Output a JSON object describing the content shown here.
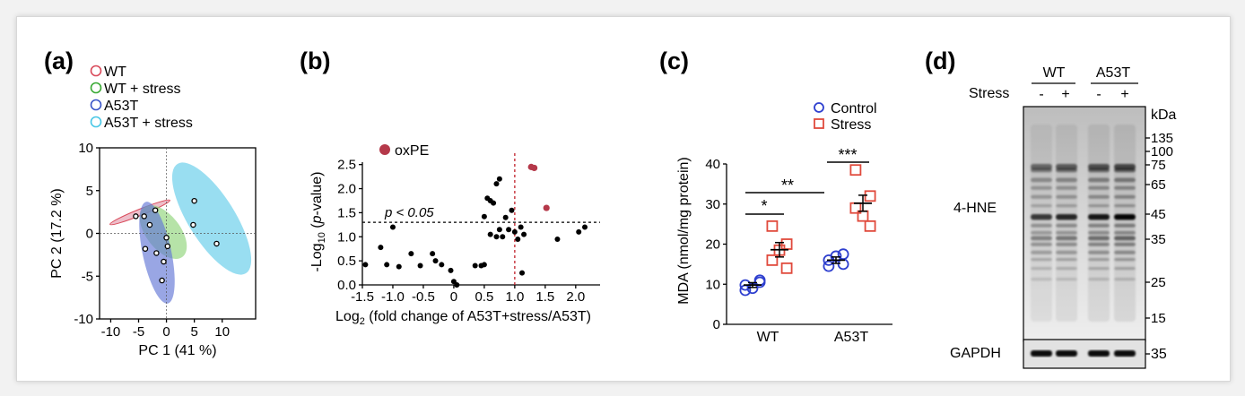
{
  "panels": {
    "a": {
      "label": "(a)",
      "legend": [
        {
          "name": "WT",
          "color": "#d94a5a"
        },
        {
          "name": "WT + stress",
          "color": "#3aaa35"
        },
        {
          "name": "A53T",
          "color": "#3a55c8"
        },
        {
          "name": "A53T + stress",
          "color": "#49c7e6"
        }
      ]
    },
    "b": {
      "label": "(b)",
      "legend_label": "oxPE",
      "legend_color": "#b5394a",
      "threshold_label": "p < 0.05"
    },
    "c": {
      "label": "(c)",
      "legend": [
        {
          "name": "Control",
          "color": "#2e3fcf"
        },
        {
          "name": "Stress",
          "color": "#e04a3c"
        }
      ],
      "significance": {
        "wt": "*",
        "between": "**",
        "a53t": "***"
      }
    },
    "d": {
      "label": "(d)",
      "groups": [
        "WT",
        "A53T"
      ],
      "row_label": "Stress",
      "lanes": [
        "-",
        "+",
        "-",
        "+"
      ],
      "unit": "kDa",
      "markers": [
        "135",
        "100",
        "75",
        "65",
        "45",
        "35",
        "25",
        "15"
      ],
      "blot_label": "4-HNE",
      "loading_label": "GAPDH",
      "loading_marker": "35"
    }
  },
  "chart_data": [
    {
      "panel": "a",
      "type": "scatter",
      "xlabel": "PC 1 (41 %)",
      "ylabel": "PC 2 (17.2 %)",
      "xlim": [
        -12,
        16
      ],
      "ylim": [
        -10,
        10
      ],
      "xticks": [
        -10,
        -5,
        0,
        5,
        10
      ],
      "yticks": [
        -10,
        -5,
        0,
        5,
        10
      ],
      "points": [
        {
          "x": -5.5,
          "y": 2.0
        },
        {
          "x": -4.0,
          "y": 2.0
        },
        {
          "x": -2.0,
          "y": 2.7
        },
        {
          "x": -3.0,
          "y": 1.0
        },
        {
          "x": 0.0,
          "y": -0.5
        },
        {
          "x": 0.2,
          "y": -1.5
        },
        {
          "x": -3.8,
          "y": -1.8
        },
        {
          "x": -1.8,
          "y": -2.3
        },
        {
          "x": -0.5,
          "y": -3.3
        },
        {
          "x": -0.8,
          "y": -5.5
        },
        {
          "x": 5.0,
          "y": 3.8
        },
        {
          "x": 4.8,
          "y": 1.0
        },
        {
          "x": 9.0,
          "y": -1.2
        }
      ]
    },
    {
      "panel": "b",
      "type": "scatter",
      "xlabel": "Log2 (fold change of A53T+stress/A53T)",
      "ylabel": "-Log10 (p-value)",
      "xlim": [
        -1.5,
        2.4
      ],
      "ylim": [
        0,
        2.55
      ],
      "xticks": [
        -1.5,
        -1.0,
        -0.5,
        0,
        0.5,
        1.0,
        1.5,
        2.0
      ],
      "xticklabels": [
        "-1.5",
        "-1.0",
        "-0.5",
        "0",
        "0.5",
        "1.0",
        "1.5",
        "2.0"
      ],
      "yticks": [
        0.0,
        0.5,
        1.0,
        1.5,
        2.0,
        2.5
      ],
      "yticklabels": [
        "0.0",
        "0.5",
        "1.0",
        "1.5",
        "2.0",
        "2.5"
      ],
      "threshold_y": 1.3,
      "vline_x": 1.0,
      "points": [
        {
          "x": -1.45,
          "y": 0.42
        },
        {
          "x": -1.2,
          "y": 0.78
        },
        {
          "x": -1.1,
          "y": 0.42
        },
        {
          "x": -1.0,
          "y": 1.2
        },
        {
          "x": -0.9,
          "y": 0.38
        },
        {
          "x": -0.7,
          "y": 0.65
        },
        {
          "x": -0.55,
          "y": 0.4
        },
        {
          "x": -0.35,
          "y": 0.65
        },
        {
          "x": -0.3,
          "y": 0.5
        },
        {
          "x": -0.2,
          "y": 0.42
        },
        {
          "x": -0.05,
          "y": 0.3
        },
        {
          "x": 0.0,
          "y": 0.07
        },
        {
          "x": 0.05,
          "y": 0.0
        },
        {
          "x": 0.35,
          "y": 0.4
        },
        {
          "x": 0.45,
          "y": 0.4
        },
        {
          "x": 0.5,
          "y": 0.42
        },
        {
          "x": 0.5,
          "y": 1.42
        },
        {
          "x": 0.55,
          "y": 1.8
        },
        {
          "x": 0.6,
          "y": 1.75
        },
        {
          "x": 0.65,
          "y": 1.7
        },
        {
          "x": 0.7,
          "y": 2.1
        },
        {
          "x": 0.75,
          "y": 2.2
        },
        {
          "x": 0.6,
          "y": 1.05
        },
        {
          "x": 0.7,
          "y": 1.0
        },
        {
          "x": 0.75,
          "y": 1.15
        },
        {
          "x": 0.8,
          "y": 1.0
        },
        {
          "x": 0.85,
          "y": 1.4
        },
        {
          "x": 0.9,
          "y": 1.15
        },
        {
          "x": 0.95,
          "y": 1.55
        },
        {
          "x": 1.0,
          "y": 1.1
        },
        {
          "x": 1.05,
          "y": 0.95
        },
        {
          "x": 1.1,
          "y": 1.2
        },
        {
          "x": 1.15,
          "y": 1.05
        },
        {
          "x": 1.12,
          "y": 0.25
        },
        {
          "x": 1.7,
          "y": 0.95
        },
        {
          "x": 2.05,
          "y": 1.1
        },
        {
          "x": 2.15,
          "y": 1.2
        }
      ],
      "highlight_points": [
        {
          "x": 1.27,
          "y": 2.45
        },
        {
          "x": 1.32,
          "y": 2.43
        },
        {
          "x": 1.52,
          "y": 1.6
        }
      ]
    },
    {
      "panel": "c",
      "type": "scatter",
      "categories": [
        "WT",
        "A53T"
      ],
      "ylabel": "MDA (nmol/mg protein)",
      "ylim": [
        0,
        40
      ],
      "yticks": [
        0,
        10,
        20,
        30,
        40
      ],
      "series": [
        {
          "name": "Control",
          "values": [
            [
              8.5,
              9.8,
              11.0,
              10.5,
              9.0
            ],
            [
              14.5,
              16.0,
              17.5,
              15.0,
              17.0
            ]
          ],
          "mean": [
            9.8,
            16.0
          ],
          "sem": [
            0.6,
            0.8
          ]
        },
        {
          "name": "Stress",
          "values": [
            [
              24.5,
              16.0,
              20.0,
              14.0,
              18.5
            ],
            [
              38.5,
              29.0,
              32.0,
              24.5,
              27.0
            ]
          ],
          "mean": [
            18.6,
            30.2
          ],
          "sem": [
            1.8,
            2.0
          ]
        }
      ]
    }
  ]
}
